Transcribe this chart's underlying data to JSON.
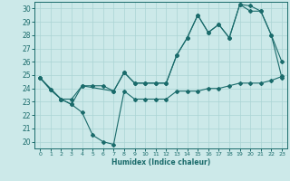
{
  "xlabel": "Humidex (Indice chaleur)",
  "xlim": [
    -0.5,
    23.5
  ],
  "ylim": [
    19.5,
    30.5
  ],
  "xticks": [
    0,
    1,
    2,
    3,
    4,
    5,
    6,
    7,
    8,
    9,
    10,
    11,
    12,
    13,
    14,
    15,
    16,
    17,
    18,
    19,
    20,
    21,
    22,
    23
  ],
  "yticks": [
    20,
    21,
    22,
    23,
    24,
    25,
    26,
    27,
    28,
    29,
    30
  ],
  "bg_color": "#cce9e9",
  "grid_color": "#aad4d4",
  "line_color": "#1a6b6b",
  "line1_x": [
    0,
    1,
    2,
    3,
    4,
    5,
    6,
    7,
    8,
    9,
    10,
    11,
    12,
    13,
    14,
    15,
    16,
    17,
    18,
    19,
    20,
    21,
    22,
    23
  ],
  "line1_y": [
    24.8,
    23.9,
    23.2,
    23.2,
    24.2,
    24.2,
    24.2,
    23.8,
    25.2,
    24.4,
    24.4,
    24.4,
    24.4,
    26.5,
    27.8,
    29.5,
    28.2,
    28.8,
    27.8,
    30.3,
    30.2,
    29.8,
    28.0,
    24.8
  ],
  "line2_x": [
    0,
    1,
    2,
    3,
    4,
    5,
    6,
    7,
    8,
    9,
    10,
    11,
    12,
    13,
    14,
    15,
    16,
    17,
    18,
    19,
    20,
    21,
    22,
    23
  ],
  "line2_y": [
    24.8,
    23.9,
    23.2,
    22.8,
    22.2,
    20.5,
    20.0,
    19.8,
    23.8,
    23.2,
    23.2,
    23.2,
    23.2,
    23.8,
    23.8,
    23.8,
    24.0,
    24.0,
    24.2,
    24.4,
    24.4,
    24.4,
    24.6,
    24.9
  ],
  "line3_x": [
    0,
    2,
    3,
    4,
    7,
    8,
    9,
    10,
    11,
    12,
    13,
    14,
    15,
    16,
    17,
    18,
    19,
    20,
    21,
    22,
    23
  ],
  "line3_y": [
    24.8,
    23.2,
    22.8,
    24.2,
    23.8,
    25.2,
    24.4,
    24.4,
    24.4,
    24.4,
    26.5,
    27.8,
    29.5,
    28.2,
    28.8,
    27.8,
    30.3,
    29.8,
    29.8,
    28.0,
    26.0
  ]
}
